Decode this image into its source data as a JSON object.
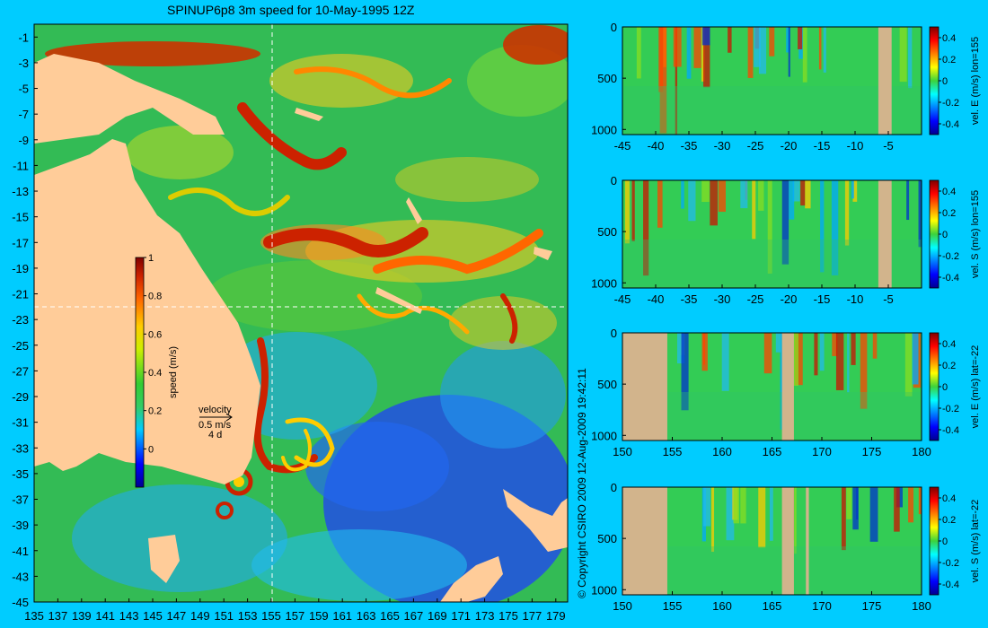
{
  "title": "SPINUP6p8 3m speed for 10-May-1995 12Z",
  "copyright": "© Copyright CSIRO 2009   12-Aug-2009 19:42:11",
  "colors": {
    "background": "#00ccff",
    "land": "#ffcc99",
    "section_land": "#d2b48c"
  },
  "chart_data": [
    {
      "type": "heatmap",
      "id": "speed-map",
      "title": "SPINUP6p8 3m speed for 10-May-1995 12Z",
      "x_ticks": [
        "135",
        "137",
        "139",
        "141",
        "143",
        "145",
        "147",
        "149",
        "151",
        "153",
        "155",
        "157",
        "159",
        "161",
        "163",
        "165",
        "167",
        "169",
        "171",
        "173",
        "175",
        "177",
        "179"
      ],
      "y_ticks": [
        "-1",
        "-3",
        "-5",
        "-7",
        "-9",
        "-11",
        "-13",
        "-15",
        "-17",
        "-19",
        "-21",
        "-23",
        "-25",
        "-27",
        "-29",
        "-31",
        "-33",
        "-35",
        "-37",
        "-39",
        "-41",
        "-43",
        "-45"
      ],
      "xlim": [
        135,
        180
      ],
      "ylim": [
        -45,
        0
      ],
      "crosshair": {
        "lon": 155,
        "lat": -22
      },
      "colorbar": {
        "label": "speed (m/s)",
        "range": [
          -0.2,
          1
        ],
        "ticks": [
          "1",
          "0.8",
          "0.6",
          "0.4",
          "0.2",
          "0"
        ]
      },
      "velocity_key": {
        "label": "velocity",
        "scale": "0.5 m/s",
        "time": "4 d"
      }
    },
    {
      "type": "heatmap",
      "id": "section-e-lon",
      "x_ticks": [
        "-45",
        "-40",
        "-35",
        "-30",
        "-25",
        "-20",
        "-15",
        "-10",
        "-5"
      ],
      "y_ticks": [
        "0",
        "500",
        "1000"
      ],
      "xlim": [
        -45,
        0
      ],
      "ylim": [
        1050,
        0
      ],
      "colorbar_label": "vel. E (m/s) lon=155",
      "colorbar_ticks": [
        "0.4",
        "0.2",
        "0",
        "-0.2",
        "-0.4"
      ],
      "land_ranges": [
        [
          -6.5,
          -4.5
        ]
      ]
    },
    {
      "type": "heatmap",
      "id": "section-s-lon",
      "x_ticks": [
        "-45",
        "-40",
        "-35",
        "-30",
        "-25",
        "-20",
        "-15",
        "-10",
        "-5"
      ],
      "y_ticks": [
        "0",
        "500",
        "1000"
      ],
      "xlim": [
        -45,
        0
      ],
      "ylim": [
        1050,
        0
      ],
      "colorbar_label": "vel. S (m/s) lon=155",
      "colorbar_ticks": [
        "0.4",
        "0.2",
        "0",
        "-0.2",
        "-0.4"
      ],
      "land_ranges": [
        [
          -6.5,
          -4.5
        ]
      ]
    },
    {
      "type": "heatmap",
      "id": "section-e-lat",
      "x_ticks": [
        "150",
        "155",
        "160",
        "165",
        "170",
        "175",
        "180"
      ],
      "y_ticks": [
        "0",
        "500",
        "1000"
      ],
      "xlim": [
        150,
        180
      ],
      "ylim": [
        1050,
        0
      ],
      "colorbar_label": "vel. E (m/s) lat=-22",
      "colorbar_ticks": [
        "0.4",
        "0.2",
        "0",
        "-0.2",
        "-0.4"
      ],
      "land_ranges": [
        [
          150,
          154.5
        ],
        [
          166,
          167.2
        ]
      ]
    },
    {
      "type": "heatmap",
      "id": "section-s-lat",
      "x_ticks": [
        "150",
        "155",
        "160",
        "165",
        "170",
        "175",
        "180"
      ],
      "y_ticks": [
        "0",
        "500",
        "1000"
      ],
      "xlim": [
        150,
        180
      ],
      "ylim": [
        1050,
        0
      ],
      "colorbar_label": "vel. S (m/s) lat=-22",
      "colorbar_ticks": [
        "0.4",
        "0.2",
        "0",
        "-0.2",
        "-0.4"
      ],
      "land_ranges": [
        [
          150,
          154.5
        ],
        [
          166,
          167.2
        ],
        [
          168.4,
          168.7
        ]
      ]
    }
  ]
}
